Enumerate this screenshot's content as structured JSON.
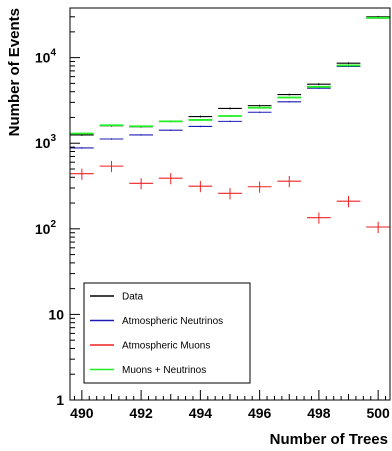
{
  "chart_data": {
    "type": "line",
    "style": "histogram with error bars",
    "xlabel": "Number of Trees",
    "ylabel": "Number of Events",
    "xlim": [
      489.6,
      500.4
    ],
    "ylim": [
      1,
      38000
    ],
    "y_scale": "log",
    "grid": false,
    "legend_position": "bottom-left",
    "x_ticks": [
      490,
      492,
      494,
      496,
      498,
      500
    ],
    "x_tick_labels": [
      "490",
      "492",
      "494",
      "496",
      "498",
      "500"
    ],
    "y_ticks": [
      {
        "value": 1,
        "base": "1",
        "exp": ""
      },
      {
        "value": 10,
        "base": "10",
        "exp": ""
      },
      {
        "value": 100,
        "base": "10",
        "exp": "2"
      },
      {
        "value": 1000,
        "base": "10",
        "exp": "3"
      },
      {
        "value": 10000,
        "base": "10",
        "exp": "4"
      }
    ],
    "x": [
      490,
      491,
      492,
      493,
      494,
      495,
      496,
      497,
      498,
      499,
      500
    ],
    "series": [
      {
        "name": "Data",
        "color": "#000000",
        "values": [
          1250,
          1600,
          1560,
          1800,
          2050,
          2550,
          2750,
          3700,
          4900,
          8600,
          30000
        ]
      },
      {
        "name": "Atmospheric Neutrinos",
        "color": "#1c1cb4",
        "values": [
          880,
          1120,
          1250,
          1420,
          1570,
          1800,
          2300,
          3050,
          4400,
          7900,
          29000
        ]
      },
      {
        "name": "Atmospheric Muons",
        "color": "#ee2222",
        "values": [
          440,
          540,
          340,
          390,
          315,
          260,
          310,
          360,
          135,
          210,
          105
        ]
      },
      {
        "name": "Muons + Neutrinos",
        "color": "#22ee22",
        "values": [
          1300,
          1620,
          1580,
          1800,
          1870,
          2080,
          2600,
          3420,
          4560,
          8100,
          29200
        ]
      }
    ]
  }
}
